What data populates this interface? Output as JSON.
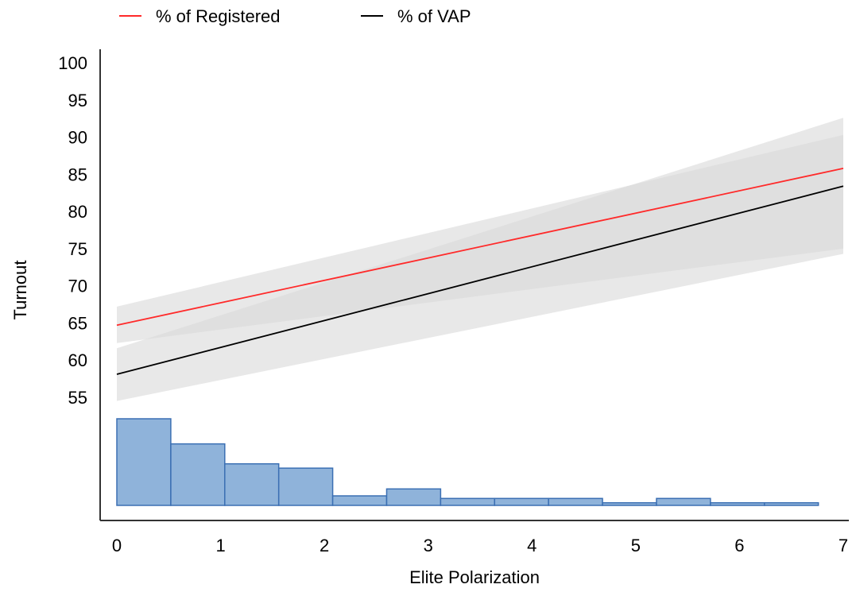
{
  "chart_data": {
    "type": "line",
    "xlabel": "Elite Polarization",
    "ylabel": "Turnout",
    "xlim": [
      0,
      7
    ],
    "ylim": [
      55,
      100
    ],
    "x_ticks": [
      "0",
      "1",
      "2",
      "3",
      "4",
      "5",
      "6",
      "7"
    ],
    "y_ticks": [
      "55",
      "60",
      "65",
      "70",
      "75",
      "80",
      "85",
      "90",
      "95",
      "100"
    ],
    "grid": false,
    "legend_position": "top-left",
    "series": [
      {
        "name": "% of Registered",
        "color": "#ff2a2a",
        "x": [
          0,
          7
        ],
        "y": [
          64.7,
          85.8
        ],
        "ci_lower": [
          62.3,
          75.0
        ],
        "ci_upper": [
          67.2,
          90.3
        ]
      },
      {
        "name": "% of VAP",
        "color": "#000000",
        "x": [
          0,
          7
        ],
        "y": [
          58.1,
          83.4
        ],
        "ci_lower": [
          54.5,
          74.3
        ],
        "ci_upper": [
          61.6,
          92.6
        ]
      }
    ],
    "histogram": {
      "color": "#8fb3da",
      "edge_color": "#3b6fb3",
      "bin_edges": [
        0,
        0.52,
        1.04,
        1.56,
        2.08,
        2.6,
        3.12,
        3.64,
        4.16,
        4.68,
        5.2,
        5.72,
        6.24,
        6.76
      ],
      "counts": [
        100,
        71,
        48,
        43,
        11,
        19,
        8,
        8,
        8,
        3,
        8,
        3,
        3
      ]
    }
  }
}
